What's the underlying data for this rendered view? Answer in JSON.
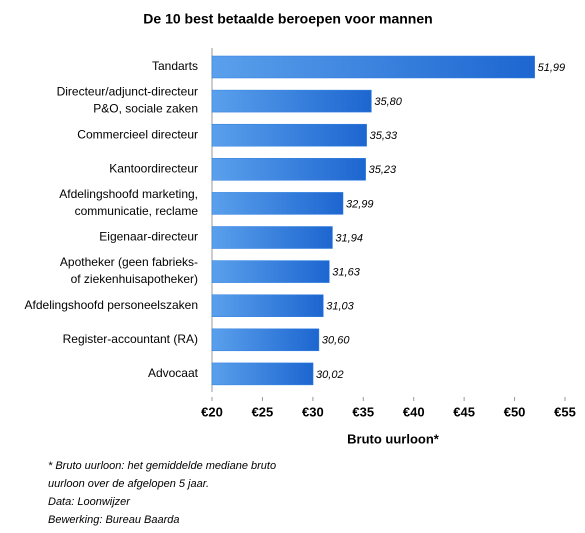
{
  "chart_data": {
    "type": "bar",
    "orientation": "horizontal",
    "title": "De 10 best betaalde beroepen voor mannen",
    "categories": [
      "Tandarts",
      "Directeur/adjunct-directeur\nP&O, sociale zaken",
      "Commercieel directeur",
      "Kantoordirecteur",
      "Afdelingshoofd marketing,\ncommunicatie, reclame",
      "Eigenaar-directeur",
      "Apotheker (geen fabrieks-\nof ziekenhuisapotheker)",
      "Afdelingshoofd personeelszaken",
      "Register-accountant (RA)",
      "Advocaat"
    ],
    "values": [
      51.99,
      35.8,
      35.33,
      35.23,
      32.99,
      31.94,
      31.63,
      31.03,
      30.6,
      30.02
    ],
    "value_labels": [
      "51,99",
      "35,80",
      "35,33",
      "35,23",
      "32,99",
      "31,94",
      "31,63",
      "31,03",
      "30,60",
      "30,02"
    ],
    "color": "#2a7de1",
    "xlim": [
      20,
      55
    ],
    "xticks": [
      {
        "value": 20,
        "label": "€20"
      },
      {
        "value": 25,
        "label": "€25"
      },
      {
        "value": 30,
        "label": "€30"
      },
      {
        "value": 35,
        "label": "€35"
      },
      {
        "value": 40,
        "label": "€40"
      },
      {
        "value": 45,
        "label": "€45"
      },
      {
        "value": 50,
        "label": "€50"
      },
      {
        "value": 55,
        "label": "€55"
      }
    ],
    "xlabel": "Bruto uurloon*",
    "notes": [
      "* Bruto uurloon: het gemiddelde mediane bruto",
      "uurloon over de afgelopen 5 jaar.",
      "Data: Loonwijzer",
      "Bewerking: Bureau Baarda"
    ]
  }
}
